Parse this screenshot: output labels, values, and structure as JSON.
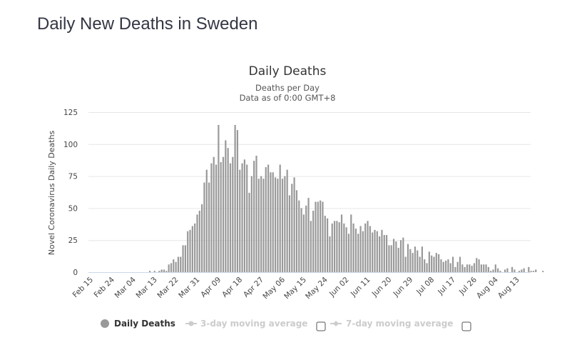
{
  "page": {
    "title": "Daily New Deaths in Sweden"
  },
  "colors": {
    "bar": "#999999",
    "grid": "#e6e6e6",
    "axis": "#ccd6eb",
    "legend_inactive": "#cccccc"
  },
  "chart_data": {
    "type": "bar",
    "title": "Daily Deaths",
    "subtitle": [
      "Deaths per Day",
      "Data as of 0:00 GMT+8"
    ],
    "xlabel": "",
    "ylabel": "Novel Coronavirus Daily Deaths",
    "ylim": [
      0,
      125
    ],
    "yticks": [
      0,
      25,
      50,
      75,
      100,
      125
    ],
    "grid": true,
    "start_date": "Feb 15",
    "xtick_labels": [
      "Feb 15",
      "Feb 24",
      "Mar 04",
      "Mar 13",
      "Mar 22",
      "Mar 31",
      "Apr 09",
      "Apr 18",
      "Apr 27",
      "May 06",
      "May 15",
      "May 24",
      "Jun 02",
      "Jun 11",
      "Jun 20",
      "Jun 29",
      "Jul 08",
      "Jul 17",
      "Jul 26",
      "Aug 04",
      "Aug 13"
    ],
    "xtick_interval_days": 9,
    "legend": {
      "placement": "bottom",
      "items": [
        {
          "label": "Daily Deaths",
          "active": true,
          "checkbox": false
        },
        {
          "label": "3-day moving average",
          "active": false,
          "checkbox": true
        },
        {
          "label": "7-day moving average",
          "active": false,
          "checkbox": true
        }
      ]
    },
    "series": [
      {
        "name": "Daily Deaths",
        "values": [
          0,
          0,
          0,
          0,
          0,
          0,
          0,
          0,
          0,
          0,
          0,
          0,
          0,
          0,
          0,
          0,
          0,
          0,
          0,
          0,
          0,
          0,
          0,
          0,
          0,
          1,
          0,
          1,
          0,
          1,
          2,
          2,
          1,
          6,
          7,
          10,
          8,
          12,
          12,
          21,
          21,
          32,
          33,
          36,
          38,
          45,
          48,
          53,
          70,
          80,
          70,
          85,
          90,
          84,
          115,
          86,
          90,
          103,
          97,
          85,
          90,
          115,
          111,
          80,
          85,
          88,
          84,
          62,
          75,
          87,
          91,
          73,
          75,
          73,
          82,
          84,
          78,
          78,
          74,
          73,
          84,
          73,
          75,
          80,
          60,
          69,
          74,
          64,
          56,
          50,
          45,
          52,
          58,
          40,
          48,
          55,
          55,
          56,
          55,
          44,
          42,
          28,
          38,
          40,
          40,
          39,
          45,
          38,
          35,
          30,
          45,
          38,
          34,
          30,
          36,
          32,
          38,
          40,
          36,
          31,
          33,
          32,
          28,
          33,
          29,
          29,
          21,
          21,
          26,
          24,
          19,
          25,
          27,
          12,
          22,
          18,
          15,
          20,
          17,
          12,
          20,
          10,
          7,
          16,
          13,
          12,
          15,
          14,
          10,
          8,
          9,
          10,
          7,
          12,
          4,
          8,
          12,
          6,
          4,
          6,
          6,
          5,
          7,
          11,
          10,
          6,
          6,
          6,
          4,
          1,
          2,
          6,
          3,
          1,
          0,
          2,
          3,
          0,
          4,
          2,
          0,
          1,
          2,
          3,
          0,
          4,
          1,
          1,
          2,
          0,
          0,
          1
        ]
      }
    ]
  }
}
